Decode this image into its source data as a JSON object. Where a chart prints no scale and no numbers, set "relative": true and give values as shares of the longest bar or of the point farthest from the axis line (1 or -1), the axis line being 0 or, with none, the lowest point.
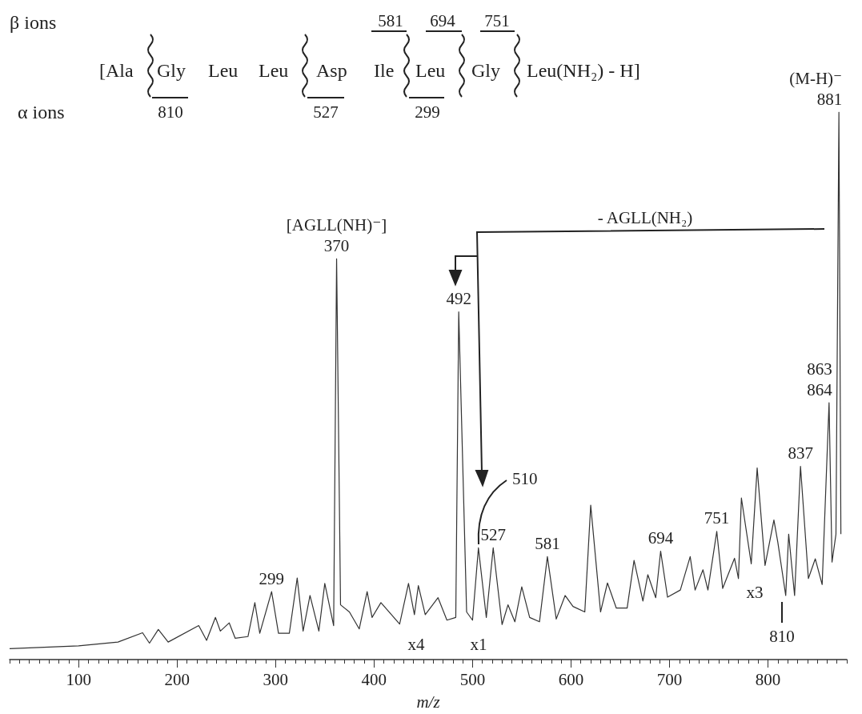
{
  "chart_data": {
    "type": "line",
    "relative": true,
    "xlabel": "m/z",
    "color": "#333333",
    "xlim": [
      30,
      880
    ],
    "xticks": [
      {
        "value": 30,
        "label": null
      },
      {
        "value": 40,
        "label": null
      },
      {
        "value": 50,
        "label": null
      },
      {
        "value": 60,
        "label": null
      },
      {
        "value": 70,
        "label": null
      },
      {
        "value": 80,
        "label": null
      },
      {
        "value": 90,
        "label": null
      },
      100,
      {
        "value": 110,
        "label": null
      },
      {
        "value": 120,
        "label": null
      },
      {
        "value": 130,
        "label": null
      },
      {
        "value": 140,
        "label": null
      },
      {
        "value": 150,
        "label": null
      },
      {
        "value": 160,
        "label": null
      },
      {
        "value": 170,
        "label": null
      },
      {
        "value": 180,
        "label": null
      },
      {
        "value": 190,
        "label": null
      },
      200,
      {
        "value": 210,
        "label": null
      },
      {
        "value": 220,
        "label": null
      },
      {
        "value": 230,
        "label": null
      },
      {
        "value": 240,
        "label": null
      },
      {
        "value": 250,
        "label": null
      },
      {
        "value": 260,
        "label": null
      },
      {
        "value": 270,
        "label": null
      },
      {
        "value": 280,
        "label": null
      },
      {
        "value": 290,
        "label": null
      },
      300,
      {
        "value": 310,
        "label": null
      },
      {
        "value": 320,
        "label": null
      },
      {
        "value": 330,
        "label": null
      },
      {
        "value": 340,
        "label": null
      },
      {
        "value": 350,
        "label": null
      },
      {
        "value": 360,
        "label": null
      },
      {
        "value": 370,
        "label": null
      },
      {
        "value": 380,
        "label": null
      },
      {
        "value": 390,
        "label": null
      },
      400,
      {
        "value": 410,
        "label": null
      },
      {
        "value": 420,
        "label": null
      },
      {
        "value": 430,
        "label": null
      },
      {
        "value": 440,
        "label": null
      },
      {
        "value": 450,
        "label": null
      },
      {
        "value": 460,
        "label": null
      },
      {
        "value": 470,
        "label": null
      },
      {
        "value": 480,
        "label": null
      },
      {
        "value": 490,
        "label": null
      },
      500,
      {
        "value": 510,
        "label": null
      },
      {
        "value": 520,
        "label": null
      },
      {
        "value": 530,
        "label": null
      },
      {
        "value": 540,
        "label": null
      },
      {
        "value": 550,
        "label": null
      },
      {
        "value": 560,
        "label": null
      },
      {
        "value": 570,
        "label": null
      },
      {
        "value": 580,
        "label": null
      },
      {
        "value": 590,
        "label": null
      },
      600,
      {
        "value": 610,
        "label": null
      },
      {
        "value": 620,
        "label": null
      },
      {
        "value": 630,
        "label": null
      },
      {
        "value": 640,
        "label": null
      },
      {
        "value": 650,
        "label": null
      },
      {
        "value": 660,
        "label": null
      },
      {
        "value": 670,
        "label": null
      },
      {
        "value": 680,
        "label": null
      },
      {
        "value": 690,
        "label": null
      },
      700,
      {
        "value": 710,
        "label": null
      },
      {
        "value": 720,
        "label": null
      },
      {
        "value": 730,
        "label": null
      },
      {
        "value": 740,
        "label": null
      },
      {
        "value": 750,
        "label": null
      },
      {
        "value": 760,
        "label": null
      },
      {
        "value": 770,
        "label": null
      },
      {
        "value": 780,
        "label": null
      },
      {
        "value": 790,
        "label": null
      },
      800,
      {
        "value": 810,
        "label": null
      },
      {
        "value": 820,
        "label": null
      },
      {
        "value": 830,
        "label": null
      },
      {
        "value": 840,
        "label": null
      },
      {
        "value": 850,
        "label": null
      },
      {
        "value": 860,
        "label": null
      },
      {
        "value": 870,
        "label": null
      },
      {
        "value": 880,
        "label": null
      }
    ],
    "x": [
      30,
      100,
      140,
      165,
      172,
      181,
      191,
      222,
      230,
      239,
      244,
      253,
      259,
      272,
      279,
      284,
      296,
      303,
      314,
      322,
      328,
      335,
      344,
      350,
      359,
      362,
      366,
      375,
      385,
      393,
      398,
      407,
      426,
      435,
      441,
      445,
      452,
      465,
      474,
      483,
      486,
      494,
      500,
      506,
      514,
      521,
      530,
      536,
      543,
      550,
      558,
      568,
      576,
      585,
      594,
      602,
      614,
      620,
      630,
      637,
      646,
      657,
      664,
      673,
      678,
      686,
      691,
      698,
      711,
      721,
      726,
      734,
      739,
      748,
      754,
      766,
      770,
      773,
      783,
      789,
      797,
      806,
      810,
      818,
      821,
      827,
      833,
      841,
      848,
      855,
      862,
      865,
      869,
      872,
      874
    ],
    "values": [
      0.02,
      0.025,
      0.032,
      0.049,
      0.03,
      0.055,
      0.032,
      0.062,
      0.035,
      0.077,
      0.052,
      0.067,
      0.039,
      0.042,
      0.104,
      0.048,
      0.124,
      0.048,
      0.048,
      0.149,
      0.052,
      0.117,
      0.052,
      0.139,
      0.062,
      0.732,
      0.1,
      0.087,
      0.056,
      0.124,
      0.077,
      0.104,
      0.065,
      0.139,
      0.082,
      0.135,
      0.082,
      0.113,
      0.072,
      0.077,
      0.635,
      0.087,
      0.072,
      0.204,
      0.077,
      0.204,
      0.064,
      0.1,
      0.069,
      0.133,
      0.077,
      0.069,
      0.188,
      0.074,
      0.117,
      0.097,
      0.087,
      0.282,
      0.087,
      0.14,
      0.094,
      0.094,
      0.181,
      0.107,
      0.155,
      0.113,
      0.198,
      0.114,
      0.127,
      0.188,
      0.127,
      0.164,
      0.127,
      0.234,
      0.13,
      0.185,
      0.148,
      0.295,
      0.175,
      0.35,
      0.172,
      0.255,
      0.214,
      0.117,
      0.229,
      0.117,
      0.353,
      0.148,
      0.184,
      0.137,
      0.469,
      0.178,
      0.229,
      1.0,
      0.229
    ],
    "annotations": [
      "β ions",
      "α ions",
      "[Ala",
      "Gly",
      "Leu",
      "Leu",
      "Asp",
      "Ile",
      "Leu",
      "Gly",
      "Leu(NH₂) - H]",
      "581",
      "694",
      "751",
      "810",
      "527",
      "299",
      "- AGLL(NH₂)",
      "510",
      "x4",
      "x1",
      "x3",
      "810",
      {
        "text": "299",
        "x": 296,
        "y": 0.124
      },
      {
        "text": "[AGLL(NH)⁻]",
        "x": 362,
        "y": 0.732
      },
      {
        "text": "370",
        "x": 362,
        "y": 0.732
      },
      {
        "text": "492",
        "x": 486,
        "y": 0.635
      },
      {
        "text": "527",
        "x": 521,
        "y": 0.204
      },
      {
        "text": "581",
        "x": 576,
        "y": 0.188
      },
      {
        "text": "694",
        "x": 691,
        "y": 0.198
      },
      {
        "text": "751",
        "x": 748,
        "y": 0.234
      },
      {
        "text": "837",
        "x": 833,
        "y": 0.353
      },
      {
        "text": "863",
        "x": 862,
        "y": 0.469
      },
      {
        "text": "864",
        "x": 862,
        "y": 0.469
      },
      {
        "text": "(M-H)⁻",
        "x": 872,
        "y": 1.0
      },
      {
        "text": "881",
        "x": 872,
        "y": 1.0
      }
    ]
  }
}
